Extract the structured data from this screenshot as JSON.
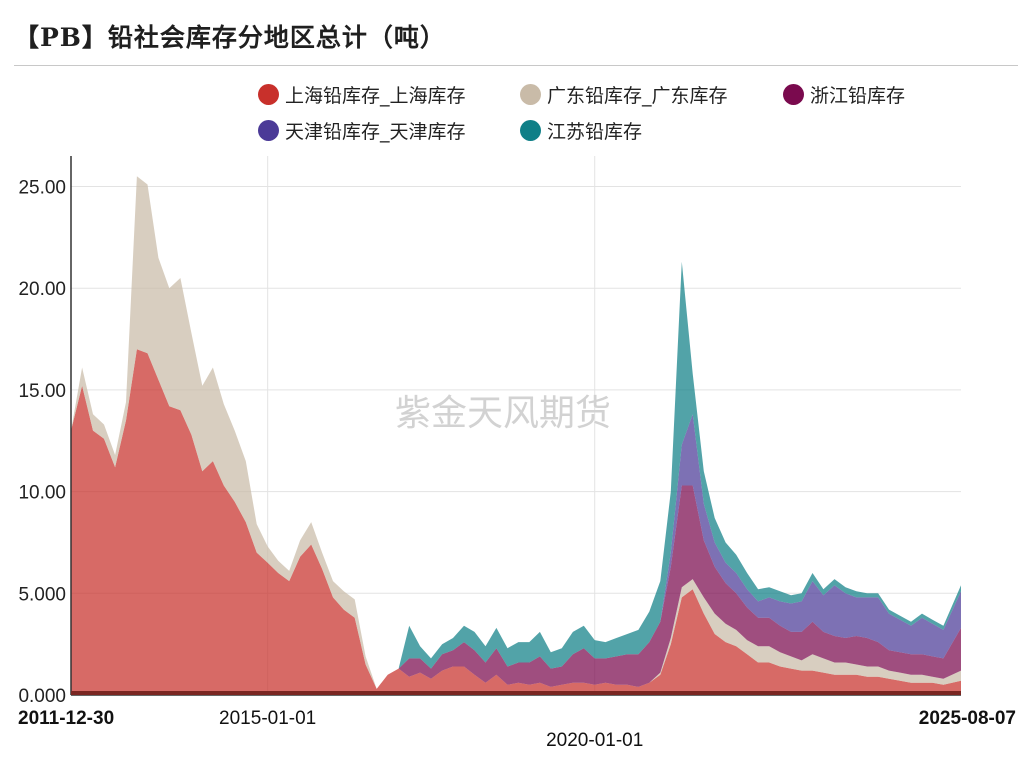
{
  "title": "【PB】铅社会库存分地区总计（吨）",
  "watermark": "紫金天风期货",
  "chart_data": {
    "type": "area",
    "stacked": true,
    "title": "【PB】铅社会库存分地区总计（吨）",
    "xlabel": "",
    "ylabel": "",
    "ylim": [
      0,
      26.5
    ],
    "yticks": [
      0,
      5,
      10,
      15,
      20,
      25
    ],
    "ytick_labels": [
      "0.000",
      "5.000",
      "10.00",
      "15.00",
      "20.00",
      "25.00"
    ],
    "x_range": [
      "2011-12-30",
      "2025-08-07"
    ],
    "xtick_labels": [
      {
        "date": "2011-12-30",
        "label": "2011-12-30",
        "bold": true,
        "row": 1
      },
      {
        "date": "2015-01-01",
        "label": "2015-01-01",
        "bold": false,
        "row": 1
      },
      {
        "date": "2020-01-01",
        "label": "2020-01-01",
        "bold": false,
        "row": 2
      },
      {
        "date": "2025-08-07",
        "label": "2025-08-07",
        "bold": true,
        "row": 1
      }
    ],
    "vertical_gridlines": [
      "2015-01-01",
      "2020-01-01"
    ],
    "grid": true,
    "legend_position": "top",
    "x": [
      "2011-12-30",
      "2012-03-01",
      "2012-05-01",
      "2012-07-01",
      "2012-09-01",
      "2012-11-01",
      "2013-01-01",
      "2013-03-01",
      "2013-05-01",
      "2013-07-01",
      "2013-09-01",
      "2013-11-01",
      "2014-01-01",
      "2014-03-01",
      "2014-05-01",
      "2014-07-01",
      "2014-09-01",
      "2014-11-01",
      "2015-01-01",
      "2015-03-01",
      "2015-05-01",
      "2015-07-01",
      "2015-09-01",
      "2015-11-01",
      "2016-01-01",
      "2016-03-01",
      "2016-05-01",
      "2016-07-01",
      "2016-09-01",
      "2016-11-01",
      "2017-01-01",
      "2017-03-01",
      "2017-05-01",
      "2017-07-01",
      "2017-09-01",
      "2017-11-01",
      "2018-01-01",
      "2018-03-01",
      "2018-05-01",
      "2018-07-01",
      "2018-09-01",
      "2018-11-01",
      "2019-01-01",
      "2019-03-01",
      "2019-05-01",
      "2019-07-01",
      "2019-09-01",
      "2019-11-01",
      "2020-01-01",
      "2020-03-01",
      "2020-05-01",
      "2020-07-01",
      "2020-09-01",
      "2020-11-01",
      "2021-01-01",
      "2021-03-01",
      "2021-05-01",
      "2021-07-01",
      "2021-09-01",
      "2021-11-01",
      "2022-01-01",
      "2022-03-01",
      "2022-05-01",
      "2022-07-01",
      "2022-09-01",
      "2022-11-01",
      "2023-01-01",
      "2023-03-01",
      "2023-05-01",
      "2023-07-01",
      "2023-09-01",
      "2023-11-01",
      "2024-01-01",
      "2024-03-01",
      "2024-05-01",
      "2024-07-01",
      "2024-09-01",
      "2024-11-01",
      "2025-01-01",
      "2025-03-01",
      "2025-05-01",
      "2025-08-07"
    ],
    "series": [
      {
        "name": "上海铅库存_上海库存",
        "color": "#c8302b",
        "values": [
          13.0,
          15.2,
          13.0,
          12.6,
          11.2,
          13.5,
          17.0,
          16.8,
          15.5,
          14.2,
          14.0,
          12.8,
          11.0,
          11.5,
          10.3,
          9.5,
          8.5,
          7.0,
          6.5,
          6.0,
          5.6,
          6.8,
          7.4,
          6.2,
          4.8,
          4.2,
          3.8,
          1.5,
          0.3,
          1.0,
          1.3,
          0.9,
          1.1,
          0.8,
          1.2,
          1.4,
          1.4,
          1.0,
          0.6,
          1.0,
          0.5,
          0.6,
          0.5,
          0.6,
          0.4,
          0.5,
          0.6,
          0.6,
          0.5,
          0.6,
          0.5,
          0.5,
          0.4,
          0.6,
          1.0,
          2.5,
          4.8,
          5.2,
          4.0,
          3.0,
          2.6,
          2.4,
          2.0,
          1.6,
          1.6,
          1.4,
          1.3,
          1.2,
          1.2,
          1.1,
          1.0,
          1.0,
          1.0,
          0.9,
          0.9,
          0.8,
          0.7,
          0.6,
          0.6,
          0.6,
          0.5,
          0.7
        ]
      },
      {
        "name": "广东铅库存_广东库存",
        "color": "#c9bba8",
        "values": [
          0.0,
          0.9,
          0.8,
          0.7,
          0.6,
          0.9,
          8.5,
          8.3,
          6.0,
          5.8,
          6.5,
          5.0,
          4.2,
          4.6,
          4.0,
          3.5,
          3.0,
          1.4,
          0.8,
          0.6,
          0.5,
          0.8,
          1.1,
          0.8,
          0.8,
          0.9,
          0.9,
          0.4,
          0.0,
          0.0,
          0.0,
          0.0,
          0.0,
          0.0,
          0.0,
          0.0,
          0.0,
          0.0,
          0.0,
          0.0,
          0.0,
          0.0,
          0.0,
          0.0,
          0.0,
          0.0,
          0.0,
          0.0,
          0.0,
          0.0,
          0.0,
          0.0,
          0.0,
          0.0,
          0.1,
          0.3,
          0.5,
          0.5,
          0.8,
          1.0,
          0.9,
          0.8,
          0.7,
          0.8,
          0.8,
          0.7,
          0.6,
          0.5,
          0.8,
          0.7,
          0.6,
          0.6,
          0.5,
          0.5,
          0.5,
          0.4,
          0.4,
          0.4,
          0.4,
          0.3,
          0.3,
          0.5
        ]
      },
      {
        "name": "浙江铅库存",
        "color": "#7a0a4e",
        "values": [
          0,
          0,
          0,
          0,
          0,
          0,
          0,
          0,
          0,
          0,
          0,
          0,
          0,
          0,
          0,
          0,
          0,
          0,
          0,
          0,
          0,
          0,
          0,
          0,
          0,
          0,
          0,
          0,
          0,
          0,
          0,
          0.9,
          0.7,
          0.5,
          0.8,
          0.8,
          1.2,
          1.2,
          1.0,
          1.3,
          0.9,
          1.0,
          1.1,
          1.3,
          0.9,
          0.9,
          1.4,
          1.7,
          1.3,
          1.2,
          1.4,
          1.5,
          1.6,
          2.0,
          2.5,
          3.5,
          5.0,
          4.6,
          2.8,
          2.3,
          2.0,
          1.8,
          1.6,
          1.4,
          1.4,
          1.3,
          1.2,
          1.4,
          1.6,
          1.3,
          1.3,
          1.2,
          1.4,
          1.4,
          1.2,
          1.0,
          1.0,
          1.0,
          1.0,
          1.0,
          1.0,
          2.1
        ]
      },
      {
        "name": "天津铅库存_天津库存",
        "color": "#4b3a97",
        "values": [
          0,
          0,
          0,
          0,
          0,
          0,
          0,
          0,
          0,
          0,
          0,
          0,
          0,
          0,
          0,
          0,
          0,
          0,
          0,
          0,
          0,
          0,
          0,
          0,
          0,
          0,
          0,
          0,
          0,
          0,
          0,
          0,
          0,
          0,
          0,
          0,
          0,
          0,
          0,
          0,
          0,
          0,
          0,
          0,
          0,
          0,
          0,
          0,
          0,
          0,
          0,
          0,
          0,
          0,
          0,
          0.7,
          2.0,
          3.5,
          1.8,
          1.2,
          1.0,
          1.0,
          0.9,
          0.8,
          1.0,
          1.2,
          1.4,
          1.5,
          2.0,
          1.8,
          2.5,
          2.2,
          1.9,
          2.0,
          2.2,
          1.8,
          1.6,
          1.4,
          1.8,
          1.6,
          1.4,
          1.8
        ]
      },
      {
        "name": "江苏铅库存",
        "color": "#0f7f87",
        "values": [
          0,
          0,
          0,
          0,
          0,
          0,
          0,
          0,
          0,
          0,
          0,
          0,
          0,
          0,
          0,
          0,
          0,
          0,
          0,
          0,
          0,
          0,
          0,
          0,
          0,
          0,
          0,
          0,
          0,
          0,
          0,
          1.6,
          0.6,
          0.5,
          0.5,
          0.6,
          0.8,
          0.9,
          0.8,
          1.0,
          0.9,
          1.0,
          1.0,
          1.2,
          0.8,
          0.9,
          1.1,
          1.1,
          0.9,
          0.8,
          0.9,
          1.0,
          1.2,
          1.5,
          2.0,
          3.0,
          9.0,
          2.0,
          1.6,
          1.2,
          1.0,
          0.9,
          0.8,
          0.6,
          0.5,
          0.5,
          0.4,
          0.4,
          0.4,
          0.3,
          0.3,
          0.3,
          0.3,
          0.2,
          0.2,
          0.2,
          0.2,
          0.2,
          0.2,
          0.2,
          0.2,
          0.3
        ]
      }
    ]
  }
}
